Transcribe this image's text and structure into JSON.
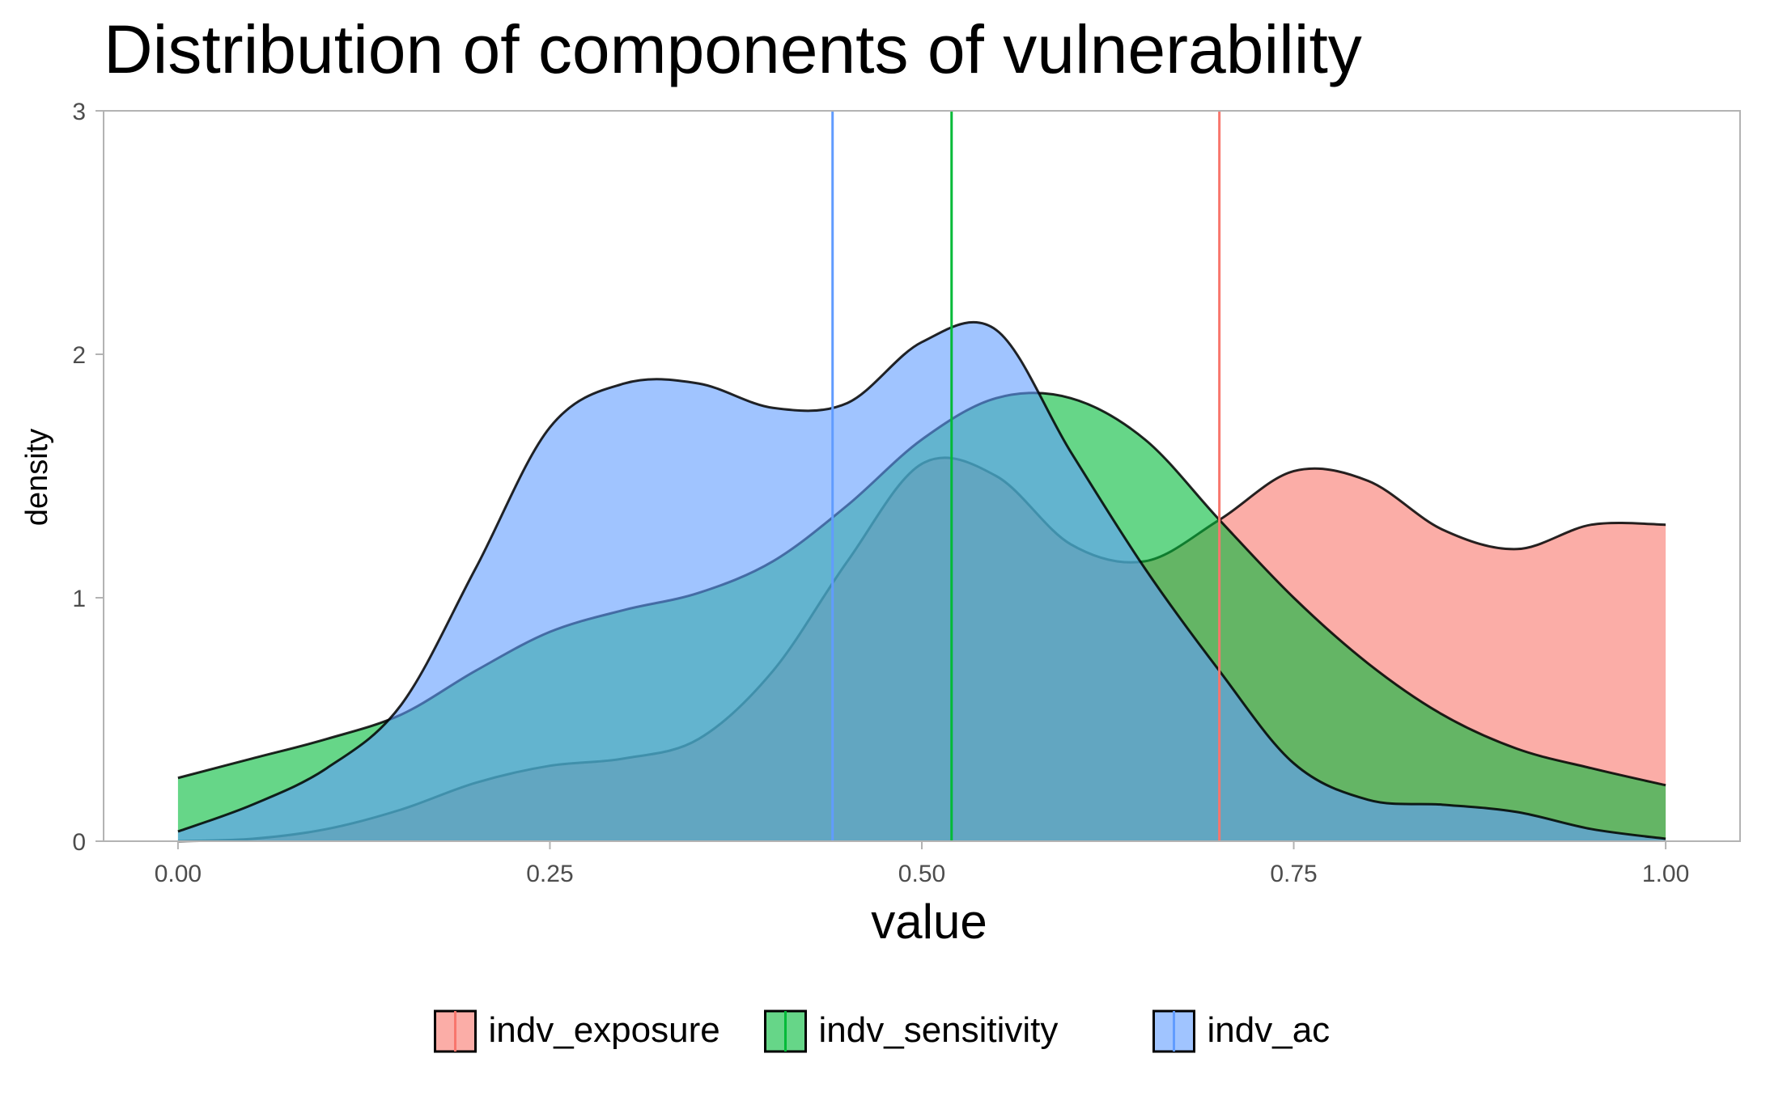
{
  "chart_data": {
    "type": "area",
    "title": "Distribution of components of vulnerability",
    "xlabel": "value",
    "ylabel": "density",
    "xlim": [
      -0.05,
      1.05
    ],
    "ylim": [
      0,
      3
    ],
    "x_ticks": [
      0,
      0.25,
      0.5,
      0.75,
      1
    ],
    "x_tick_labels": [
      "0.00",
      "0.25",
      "0.50",
      "0.75",
      "1.00"
    ],
    "y_ticks": [
      0,
      1,
      2,
      3
    ],
    "y_tick_labels": [
      "0",
      "1",
      "2",
      "3"
    ],
    "grid": false,
    "legend_position": "bottom",
    "series": [
      {
        "name": "indv_exposure",
        "color": "#F8766D",
        "mean": 0.7,
        "x": [
          0,
          0.05,
          0.1,
          0.15,
          0.2,
          0.25,
          0.3,
          0.35,
          0.4,
          0.45,
          0.5,
          0.55,
          0.6,
          0.65,
          0.7,
          0.75,
          0.8,
          0.85,
          0.9,
          0.95,
          1.0
        ],
        "values": [
          0.0,
          0.01,
          0.05,
          0.13,
          0.24,
          0.31,
          0.34,
          0.42,
          0.7,
          1.15,
          1.55,
          1.5,
          1.22,
          1.15,
          1.32,
          1.52,
          1.48,
          1.28,
          1.2,
          1.3,
          1.3
        ]
      },
      {
        "name": "indv_sensitivity",
        "color": "#00BA38",
        "mean": 0.52,
        "x": [
          0,
          0.05,
          0.1,
          0.15,
          0.2,
          0.25,
          0.3,
          0.35,
          0.4,
          0.45,
          0.5,
          0.55,
          0.6,
          0.65,
          0.7,
          0.75,
          0.8,
          0.85,
          0.9,
          0.95,
          1.0
        ],
        "values": [
          0.26,
          0.34,
          0.42,
          0.52,
          0.7,
          0.86,
          0.95,
          1.02,
          1.15,
          1.38,
          1.65,
          1.82,
          1.82,
          1.65,
          1.32,
          1.0,
          0.73,
          0.52,
          0.38,
          0.3,
          0.23
        ]
      },
      {
        "name": "indv_ac",
        "color": "#619CFF",
        "mean": 0.44,
        "x": [
          0,
          0.05,
          0.1,
          0.15,
          0.2,
          0.25,
          0.3,
          0.35,
          0.4,
          0.45,
          0.5,
          0.55,
          0.6,
          0.65,
          0.7,
          0.75,
          0.8,
          0.85,
          0.9,
          0.95,
          1.0
        ],
        "values": [
          0.04,
          0.15,
          0.3,
          0.56,
          1.12,
          1.7,
          1.88,
          1.88,
          1.78,
          1.8,
          2.05,
          2.1,
          1.6,
          1.12,
          0.7,
          0.32,
          0.17,
          0.15,
          0.12,
          0.05,
          0.01
        ]
      }
    ]
  }
}
